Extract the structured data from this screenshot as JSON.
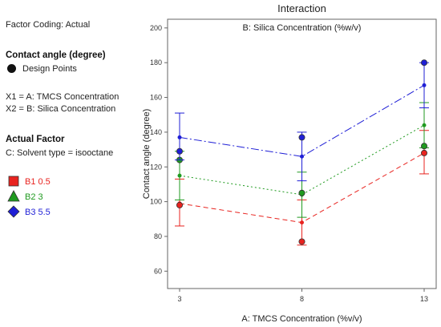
{
  "left_panel": {
    "factor_coding": "Factor Coding: Actual",
    "response_title": "Contact angle (degree)",
    "design_points_label": "Design Points",
    "x1": "X1 = A: TMCS Concentration",
    "x2": "X2 = B: Silica Concentration",
    "actual_factor_title": "Actual Factor",
    "actual_factor_value": "C: Solvent type = isooctane"
  },
  "legend": [
    {
      "label": "B1 0.5",
      "color": "#e8231f",
      "marker": "square"
    },
    {
      "label": "B2 3",
      "color": "#1f9a1f",
      "marker": "triangle"
    },
    {
      "label": "B3 5.5",
      "color": "#1f1fd6",
      "marker": "diamond"
    }
  ],
  "chart_data": {
    "type": "line",
    "title": "Interaction",
    "subtitle": "B: Silica Concentration (%w/v)",
    "xlabel": "A: TMCS Concentration (%v/v)",
    "ylabel": "Contact angle (degree)",
    "x": [
      3,
      8,
      13
    ],
    "xticks": [
      "3",
      "8",
      "13"
    ],
    "yticks": [
      "60",
      "80",
      "100",
      "120",
      "140",
      "160",
      "180",
      "200"
    ],
    "ylim": [
      50,
      205
    ],
    "series": [
      {
        "name": "B1 0.5",
        "color": "#e8231f",
        "dash": "6,4",
        "values": [
          99,
          88,
          128
        ],
        "ci_low": [
          86,
          75,
          116
        ],
        "ci_high": [
          113,
          101,
          141
        ],
        "design_points": [
          [
            3,
            98
          ],
          [
            8,
            77
          ],
          [
            13,
            128
          ]
        ]
      },
      {
        "name": "B2 3",
        "color": "#1f9a1f",
        "dash": "2,3",
        "values": [
          115,
          104,
          144
        ],
        "ci_low": [
          101,
          91,
          131
        ],
        "ci_high": [
          129,
          117,
          157
        ],
        "design_points": [
          [
            3,
            124
          ],
          [
            8,
            105
          ],
          [
            13,
            132
          ]
        ]
      },
      {
        "name": "B3 5.5",
        "color": "#1f1fd6",
        "dash": "10,3,2,3",
        "values": [
          137,
          126,
          167
        ],
        "ci_low": [
          124,
          112,
          154
        ],
        "ci_high": [
          151,
          140,
          180
        ],
        "design_points": [
          [
            3,
            129
          ],
          [
            8,
            137
          ],
          [
            13,
            180
          ]
        ]
      }
    ]
  }
}
